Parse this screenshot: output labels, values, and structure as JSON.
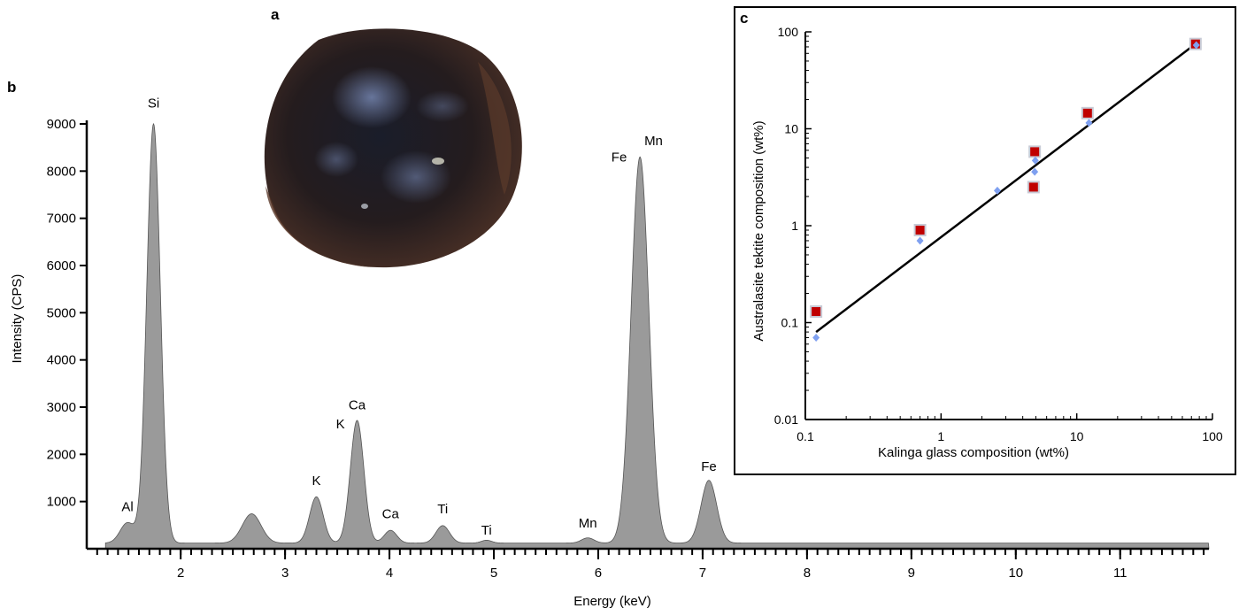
{
  "panels": {
    "a": "a",
    "b": "b",
    "c": "c"
  },
  "chart_data": [
    {
      "type": "area",
      "panel": "b",
      "xlabel": "Energy (keV)",
      "ylabel": "Intensity (CPS)",
      "xlim": [
        1.1,
        11.85
      ],
      "ylim": [
        0,
        9000
      ],
      "x_ticks": [
        2,
        3,
        4,
        5,
        6,
        7,
        8,
        9,
        10,
        11
      ],
      "x_tick_labels": [
        "2",
        "3",
        "4",
        "5",
        "6",
        "7",
        "8",
        "9",
        "10",
        "11"
      ],
      "y_ticks": [
        1000,
        2000,
        3000,
        4000,
        5000,
        6000,
        7000,
        8000,
        9000
      ],
      "y_tick_labels": [
        "1000",
        "2000",
        "3000",
        "4000",
        "5000",
        "6000",
        "7000",
        "8000",
        "9000"
      ],
      "fill_color": "#9a9a9a",
      "baseline": 120,
      "spectrum_peaks": [
        {
          "x": 1.49,
          "height": 430,
          "width": 0.07
        },
        {
          "x": 1.74,
          "height": 8880,
          "width": 0.065
        },
        {
          "x": 2.68,
          "height": 620,
          "width": 0.09
        },
        {
          "x": 3.3,
          "height": 980,
          "width": 0.065
        },
        {
          "x": 3.69,
          "height": 2600,
          "width": 0.065
        },
        {
          "x": 4.01,
          "height": 270,
          "width": 0.06
        },
        {
          "x": 4.51,
          "height": 370,
          "width": 0.065
        },
        {
          "x": 4.93,
          "height": 60,
          "width": 0.05
        },
        {
          "x": 5.9,
          "height": 110,
          "width": 0.06
        },
        {
          "x": 6.4,
          "height": 8180,
          "width": 0.085
        },
        {
          "x": 7.06,
          "height": 1330,
          "width": 0.075
        }
      ],
      "peak_labels": [
        {
          "label": "Al",
          "x": 1.49,
          "y": 800
        },
        {
          "label": "Si",
          "x": 1.74,
          "y": 9350
        },
        {
          "label": "K",
          "x": 3.3,
          "y": 1350
        },
        {
          "label": "K",
          "x": 3.53,
          "y": 2550
        },
        {
          "label": "Ca",
          "x": 3.69,
          "y": 2950
        },
        {
          "label": "Ca",
          "x": 4.01,
          "y": 650
        },
        {
          "label": "Ti",
          "x": 4.51,
          "y": 750
        },
        {
          "label": "Ti",
          "x": 4.93,
          "y": 300
        },
        {
          "label": "Mn",
          "x": 5.9,
          "y": 450
        },
        {
          "label": "Fe",
          "x": 6.2,
          "y": 8200
        },
        {
          "label": "Mn",
          "x": 6.53,
          "y": 8550
        },
        {
          "label": "Fe",
          "x": 7.06,
          "y": 1650
        }
      ]
    },
    {
      "type": "scatter",
      "panel": "c",
      "xlabel": "Kalinga glass composition (wt%)",
      "ylabel": "Australasite tektite composition (wt%)",
      "xscale": "log",
      "yscale": "log",
      "xlim": [
        0.1,
        100
      ],
      "ylim": [
        0.01,
        100
      ],
      "x_tick_labels": [
        "0.1",
        "1",
        "10",
        "100"
      ],
      "y_tick_labels": [
        "0.01",
        "0.1",
        "1",
        "10",
        "100"
      ],
      "series": [
        {
          "marker": "square",
          "color": "#c00000",
          "x": [
            0.12,
            0.7,
            4.8,
            4.9,
            12.0,
            75.0
          ],
          "y": [
            0.13,
            0.9,
            2.5,
            5.8,
            14.5,
            75.0
          ]
        },
        {
          "marker": "diamond",
          "color": "#7fa0f0",
          "x": [
            0.12,
            0.7,
            2.6,
            4.9,
            4.95,
            12.3,
            76.0
          ],
          "y": [
            0.07,
            0.7,
            2.3,
            3.6,
            4.7,
            11.5,
            73.0
          ]
        }
      ],
      "fit_line": {
        "x": [
          0.12,
          75.0
        ],
        "y": [
          0.08,
          75.0
        ]
      }
    }
  ]
}
